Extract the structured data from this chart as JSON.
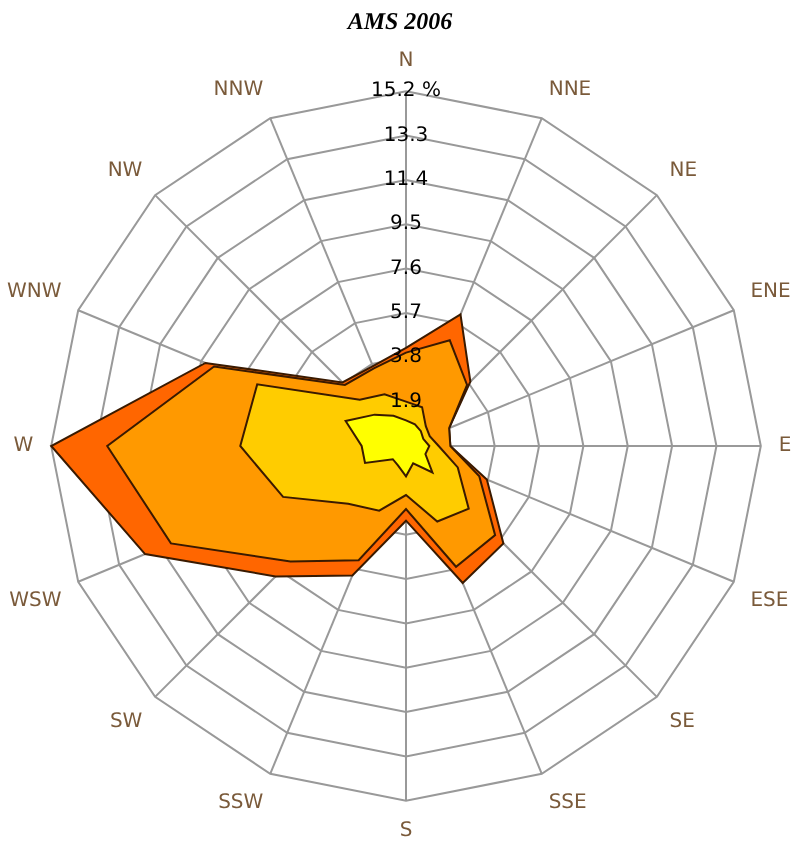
{
  "chart_data": {
    "type": "radar",
    "title": "AMS 2006",
    "categories": [
      "N",
      "NNE",
      "NE",
      "ENE",
      "E",
      "ESE",
      "SE",
      "SSE",
      "S",
      "SSW",
      "SW",
      "WSW",
      "W",
      "WNW",
      "NW",
      "NNW"
    ],
    "series": [
      {
        "color": "#ffff00",
        "values": [
          1.1,
          1.0,
          0.9,
          0.8,
          1.0,
          0.9,
          1.6,
          0.8,
          1.3,
          0.9,
          0.8,
          1.9,
          1.9,
          2.8,
          1.9,
          1.4
        ]
      },
      {
        "color": "#ffcc00",
        "values": [
          1.9,
          1.8,
          1.2,
          1.1,
          1.4,
          2.4,
          3.8,
          3.5,
          2.1,
          3.0,
          3.5,
          5.7,
          7.1,
          6.9,
          2.8,
          2.4
        ]
      },
      {
        "color": "#ff9900",
        "values": [
          4.0,
          4.9,
          3.7,
          2.0,
          1.9,
          3.4,
          5.4,
          5.6,
          2.7,
          5.3,
          7.0,
          10.9,
          12.8,
          8.9,
          3.7,
          3.6
        ]
      },
      {
        "color": "#ff6600",
        "values": [
          4.2,
          6.1,
          3.9,
          2.0,
          1.9,
          3.75,
          5.9,
          6.35,
          3.2,
          6.0,
          7.9,
          12.1,
          15.2,
          9.3,
          3.85,
          3.7
        ]
      }
    ],
    "ylim": [
      0,
      15.2
    ],
    "yticks": [
      1.9,
      3.8,
      5.7,
      7.6,
      9.5,
      11.4,
      13.3,
      {
        "value": 15.2,
        "label": "15.2 %"
      }
    ],
    "grid": true,
    "legend": false,
    "marker": "none"
  }
}
